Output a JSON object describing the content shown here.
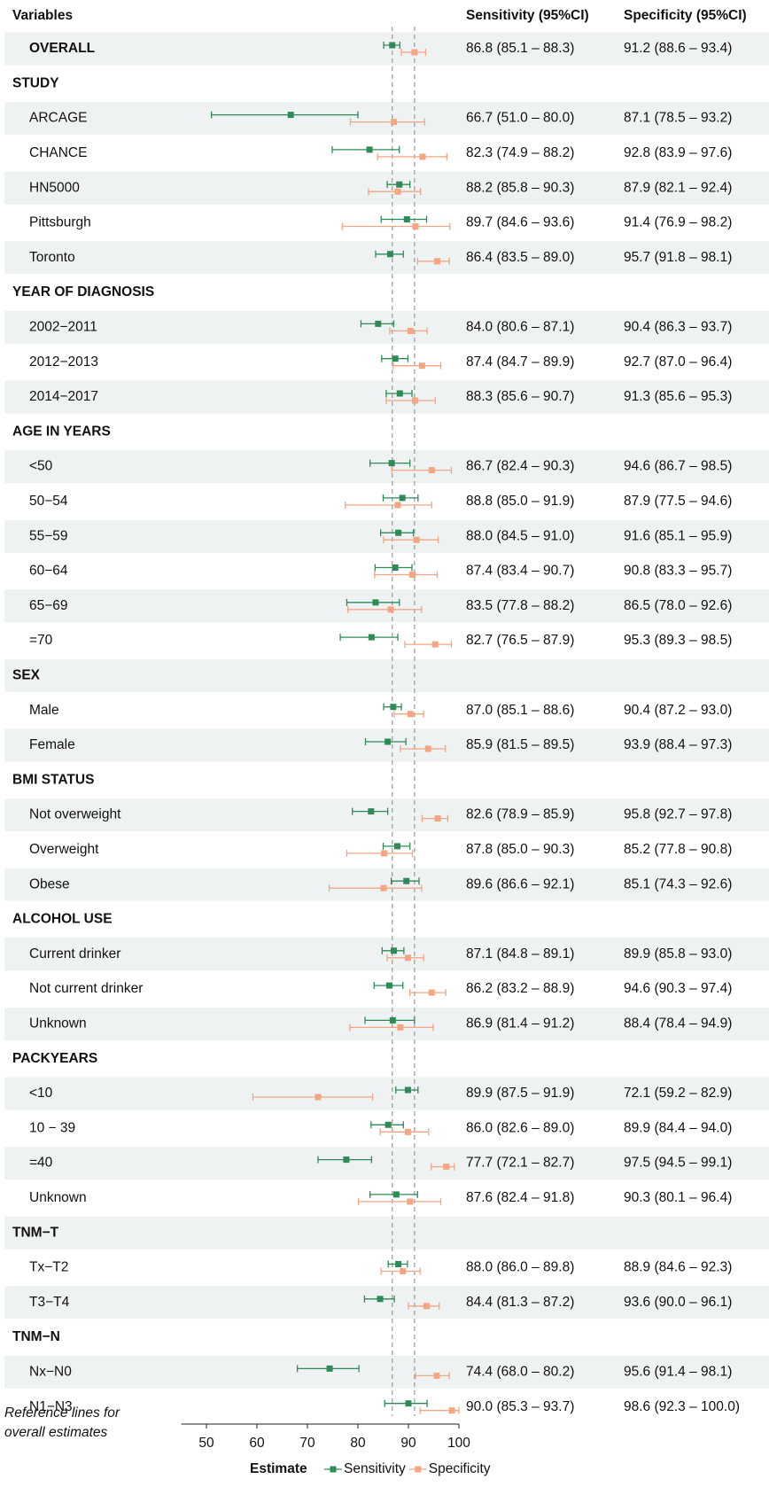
{
  "chart_data": {
    "type": "forest",
    "column_headers": [
      "Variables",
      "Sensitivity (95%CI)",
      "Specificity (95%CI)"
    ],
    "categories": [
      "OVERALL",
      "STUDY",
      "ARCAGE",
      "CHANCE",
      "HN5000",
      "Pittsburgh",
      "Toronto",
      "YEAR OF DIAGNOSIS",
      "2002−2011",
      "2012−2013",
      "2014−2017",
      "AGE IN YEARS",
      "<50",
      "50−54",
      "55−59",
      "60−64",
      "65−69",
      "=70",
      "SEX",
      "Male",
      "Female",
      "BMI STATUS",
      "Not overweight",
      "Overweight",
      "Obese",
      "ALCOHOL USE",
      "Current drinker",
      "Not current drinker",
      "Unknown",
      "PACKYEARS",
      "<10",
      "10 − 39",
      "=40",
      "Unknown",
      "TNM−T",
      "Tx−T2",
      "T3−T4",
      "TNM−N",
      "Nx−N0",
      "N1−N3"
    ],
    "series": [
      {
        "name": "Sensitivity",
        "color": "#2e8b57",
        "values": [
          86.8,
          null,
          66.7,
          82.3,
          88.2,
          89.7,
          86.4,
          null,
          84.0,
          87.4,
          88.3,
          null,
          86.7,
          88.8,
          88.0,
          87.4,
          83.5,
          82.7,
          null,
          87.0,
          85.9,
          null,
          82.6,
          87.8,
          89.6,
          null,
          87.1,
          86.2,
          86.9,
          null,
          89.9,
          86.0,
          77.7,
          87.6,
          null,
          88.0,
          84.4,
          null,
          74.4,
          90.0
        ],
        "lower": [
          85.1,
          null,
          51.0,
          74.9,
          85.8,
          84.6,
          83.5,
          null,
          80.6,
          84.7,
          85.6,
          null,
          82.4,
          85.0,
          84.5,
          83.4,
          77.8,
          76.5,
          null,
          85.1,
          81.5,
          null,
          78.9,
          85.0,
          86.6,
          null,
          84.8,
          83.2,
          81.4,
          null,
          87.5,
          82.6,
          72.1,
          82.4,
          null,
          86.0,
          81.3,
          null,
          68.0,
          85.3
        ],
        "upper": [
          88.3,
          null,
          80.0,
          88.2,
          90.3,
          93.6,
          89.0,
          null,
          87.1,
          89.9,
          90.7,
          null,
          90.3,
          91.9,
          91.0,
          90.7,
          88.2,
          87.9,
          null,
          88.6,
          89.5,
          null,
          85.9,
          90.3,
          92.1,
          null,
          89.1,
          88.9,
          91.2,
          null,
          91.9,
          89.0,
          82.7,
          91.8,
          null,
          89.8,
          87.2,
          null,
          80.2,
          93.7
        ],
        "value_labels": [
          "86.8 (85.1 – 88.3)",
          null,
          "66.7 (51.0 – 80.0)",
          "82.3 (74.9 – 88.2)",
          "88.2 (85.8 – 90.3)",
          "89.7 (84.6 – 93.6)",
          "86.4 (83.5 – 89.0)",
          null,
          "84.0 (80.6 – 87.1)",
          "87.4 (84.7 – 89.9)",
          "88.3 (85.6 – 90.7)",
          null,
          "86.7 (82.4 – 90.3)",
          "88.8 (85.0 – 91.9)",
          "88.0 (84.5 – 91.0)",
          "87.4 (83.4 – 90.7)",
          "83.5 (77.8 – 88.2)",
          "82.7 (76.5 – 87.9)",
          null,
          "87.0 (85.1 – 88.6)",
          "85.9 (81.5 – 89.5)",
          null,
          "82.6 (78.9 – 85.9)",
          "87.8 (85.0 – 90.3)",
          "89.6 (86.6 – 92.1)",
          null,
          "87.1 (84.8 – 89.1)",
          "86.2 (83.2 – 88.9)",
          "86.9 (81.4 – 91.2)",
          null,
          "89.9 (87.5 – 91.9)",
          "86.0 (82.6 – 89.0)",
          "77.7 (72.1 – 82.7)",
          "87.6 (82.4 – 91.8)",
          null,
          "88.0 (86.0 – 89.8)",
          "84.4 (81.3 – 87.2)",
          null,
          "74.4 (68.0 – 80.2)",
          "90.0 (85.3 – 93.7)"
        ]
      },
      {
        "name": "Specificity",
        "color": "#f4a582",
        "values": [
          91.2,
          null,
          87.1,
          92.8,
          87.9,
          91.4,
          95.7,
          null,
          90.4,
          92.7,
          91.3,
          null,
          94.6,
          87.9,
          91.6,
          90.8,
          86.5,
          95.3,
          null,
          90.4,
          93.9,
          null,
          95.8,
          85.2,
          85.1,
          null,
          89.9,
          94.6,
          88.4,
          null,
          72.1,
          89.9,
          97.5,
          90.3,
          null,
          88.9,
          93.6,
          null,
          95.6,
          98.6
        ],
        "lower": [
          88.6,
          null,
          78.5,
          83.9,
          82.1,
          76.9,
          91.8,
          null,
          86.3,
          87.0,
          85.6,
          null,
          86.7,
          77.5,
          85.1,
          83.3,
          78.0,
          89.3,
          null,
          87.2,
          88.4,
          null,
          92.7,
          77.8,
          74.3,
          null,
          85.8,
          90.3,
          78.4,
          null,
          59.2,
          84.4,
          94.5,
          80.1,
          null,
          84.6,
          90.0,
          null,
          91.4,
          92.3
        ],
        "upper": [
          93.4,
          null,
          93.2,
          97.6,
          92.4,
          98.2,
          98.1,
          null,
          93.7,
          96.4,
          95.3,
          null,
          98.5,
          94.6,
          95.9,
          95.7,
          92.6,
          98.5,
          null,
          93.0,
          97.3,
          null,
          97.8,
          90.8,
          92.6,
          null,
          93.0,
          97.4,
          94.9,
          null,
          82.9,
          94.0,
          99.1,
          96.4,
          null,
          92.3,
          96.1,
          null,
          98.1,
          100.0
        ],
        "value_labels": [
          "91.2 (88.6 – 93.4)",
          null,
          "87.1 (78.5 – 93.2)",
          "92.8 (83.9 – 97.6)",
          "87.9 (82.1 – 92.4)",
          "91.4 (76.9 – 98.2)",
          "95.7 (91.8 – 98.1)",
          null,
          "90.4 (86.3 – 93.7)",
          "92.7 (87.0 – 96.4)",
          "91.3 (85.6 – 95.3)",
          null,
          "94.6 (86.7 – 98.5)",
          "87.9 (77.5 – 94.6)",
          "91.6 (85.1 – 95.9)",
          "90.8 (83.3 – 95.7)",
          "86.5 (78.0 – 92.6)",
          "95.3 (89.3 – 98.5)",
          null,
          "90.4 (87.2 – 93.0)",
          "93.9 (88.4 – 97.3)",
          null,
          "95.8 (92.7 – 97.8)",
          "85.2 (77.8 – 90.8)",
          "85.1 (74.3 – 92.6)",
          null,
          "89.9 (85.8 – 93.0)",
          "94.6 (90.3 – 97.4)",
          "88.4 (78.4 – 94.9)",
          null,
          "72.1 (59.2 – 82.9)",
          "89.9 (84.4 – 94.0)",
          "97.5 (94.5 – 99.1)",
          "90.3 (80.1 – 96.4)",
          null,
          "88.9 (84.6 – 92.3)",
          "93.6 (90.0 – 96.1)",
          null,
          "95.6 (91.4 – 98.1)",
          "98.6 (92.3 – 100.0)"
        ]
      }
    ],
    "xlim": [
      45,
      100
    ],
    "xticks": [
      50,
      60,
      70,
      80,
      90,
      100
    ],
    "annotation": [
      "Reference lines for",
      "overall estimates"
    ],
    "legend_title": "Estimate",
    "legend": "bottom"
  }
}
